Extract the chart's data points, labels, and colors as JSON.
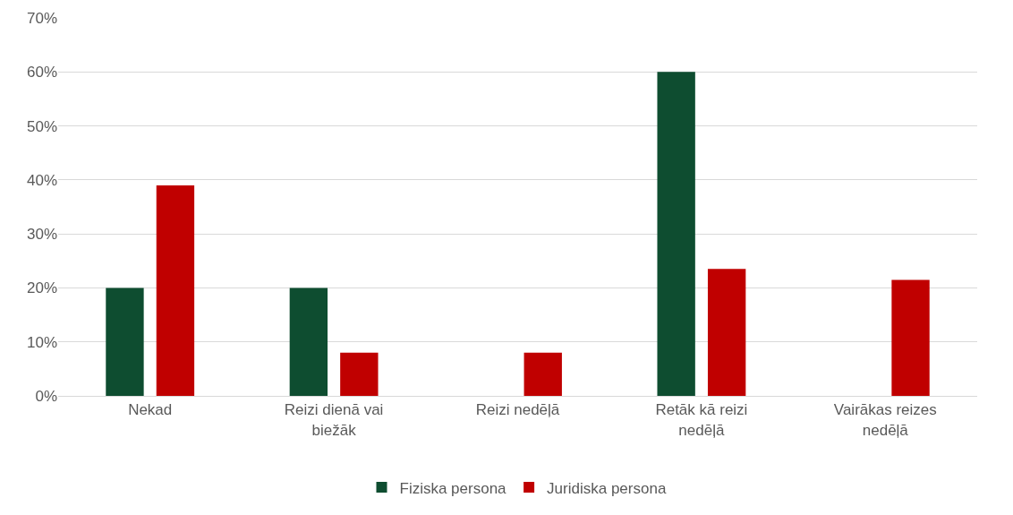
{
  "chart_data": {
    "type": "bar",
    "categories": [
      "Nekad",
      "Reizi dienā vai biežāk",
      "Reizi nedēļā",
      "Retāk kā reizi nedēļā",
      "Vairākas reizes nedēļā"
    ],
    "series": [
      {
        "name": "Fiziska persona",
        "color": "#0e4d30",
        "values": [
          20,
          20,
          0,
          60,
          0
        ]
      },
      {
        "name": "Juridiska persona",
        "color": "#c00000",
        "values": [
          39,
          8,
          8,
          23.5,
          21.5
        ]
      }
    ],
    "ylim": [
      0,
      70
    ],
    "yticks": [
      {
        "value": 0,
        "label": "0%"
      },
      {
        "value": 10,
        "label": "10%"
      },
      {
        "value": 20,
        "label": "20%"
      },
      {
        "value": 30,
        "label": "30%"
      },
      {
        "value": 40,
        "label": "40%"
      },
      {
        "value": 50,
        "label": "50%"
      },
      {
        "value": 60,
        "label": "60%"
      },
      {
        "value": 70,
        "label": "70%"
      }
    ],
    "grid": "y",
    "legend": "bottom"
  }
}
